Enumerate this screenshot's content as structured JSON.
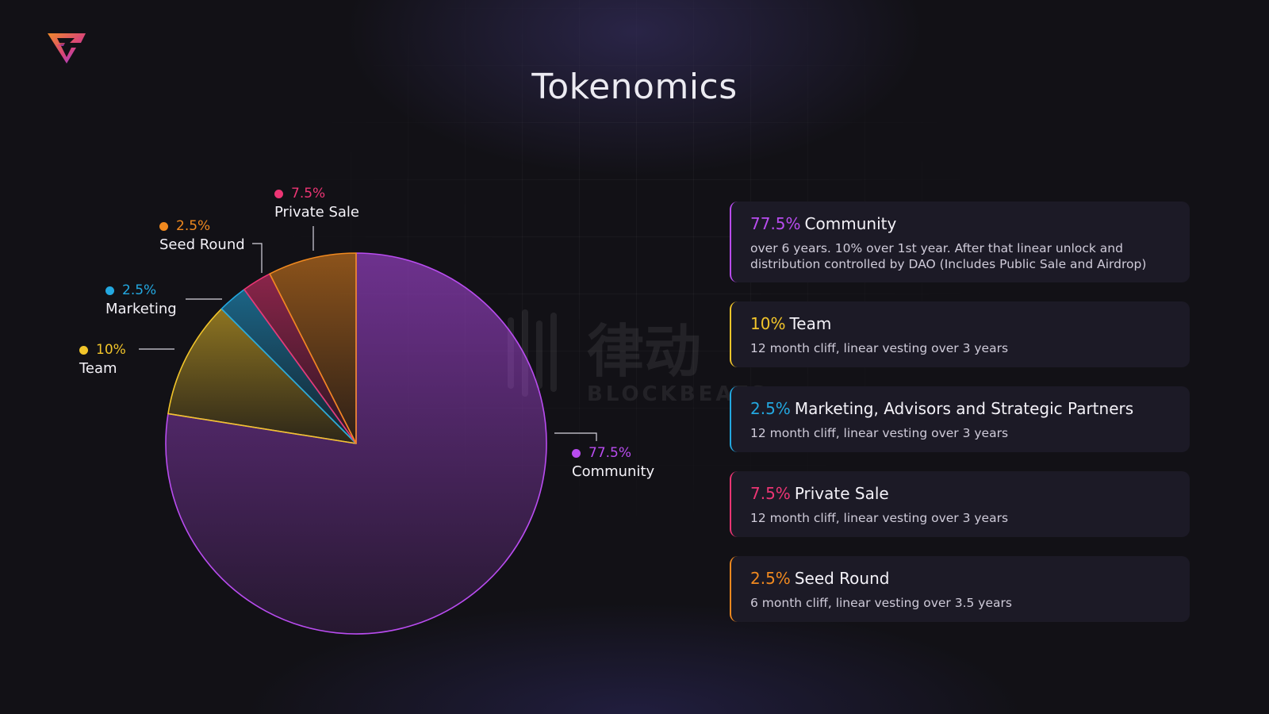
{
  "page": {
    "title": "Tokenomics"
  },
  "watermark": {
    "text": "BLOCKBEATS",
    "cn": "律动"
  },
  "colors": {
    "community": "#b94cf0",
    "team": "#f2c52a",
    "marketing": "#23a8e0",
    "seed_round": "#f0891f",
    "private_sale": "#ec3574"
  },
  "chart_data": {
    "type": "pie",
    "title": "",
    "slices": [
      {
        "label": "Community",
        "value": 77.5,
        "pct_label": "77.5%",
        "color": "#b94cf0"
      },
      {
        "label": "Team",
        "value": 10,
        "pct_label": "10%",
        "color": "#f2c52a"
      },
      {
        "label": "Marketing",
        "value": 2.5,
        "pct_label": "2.5%",
        "color": "#23a8e0"
      },
      {
        "label": "Seed Round",
        "value": 2.5,
        "pct_label": "2.5%",
        "color": "#ec3574"
      },
      {
        "label": "Private Sale",
        "value": 7.5,
        "pct_label": "7.5%",
        "color": "#f0891f"
      }
    ]
  },
  "callouts": {
    "private_sale": {
      "pct": "7.5%",
      "name": "Private Sale",
      "color": "#ec3574"
    },
    "seed_round": {
      "pct": "2.5%",
      "name": "Seed Round",
      "color": "#f0891f"
    },
    "marketing": {
      "pct": "2.5%",
      "name": "Marketing",
      "color": "#23a8e0"
    },
    "team": {
      "pct": "10%",
      "name": "Team",
      "color": "#f2c52a"
    },
    "community": {
      "pct": "77.5%",
      "name": "Community",
      "color": "#b94cf0"
    }
  },
  "cards": [
    {
      "pct": "77.5%",
      "title": "Community",
      "desc": "over 6 years. 10% over 1st year. After that linear unlock and distribution controlled by DAO (Includes Public Sale and Airdrop)",
      "color": "#b94cf0"
    },
    {
      "pct": "10%",
      "title": "Team",
      "desc": "12 month cliff, linear vesting over 3 years",
      "color": "#f2c52a"
    },
    {
      "pct": "2.5%",
      "title": "Marketing, Advisors and Strategic Partners",
      "desc": "12 month cliff, linear vesting over 3 years",
      "color": "#23a8e0"
    },
    {
      "pct": "7.5%",
      "title": "Private Sale",
      "desc": "12 month cliff, linear vesting over 3 years",
      "color": "#ec3574"
    },
    {
      "pct": "2.5%",
      "title": "Seed Round",
      "desc": "6 month cliff, linear vesting over 3.5 years",
      "color": "#f0891f"
    }
  ]
}
